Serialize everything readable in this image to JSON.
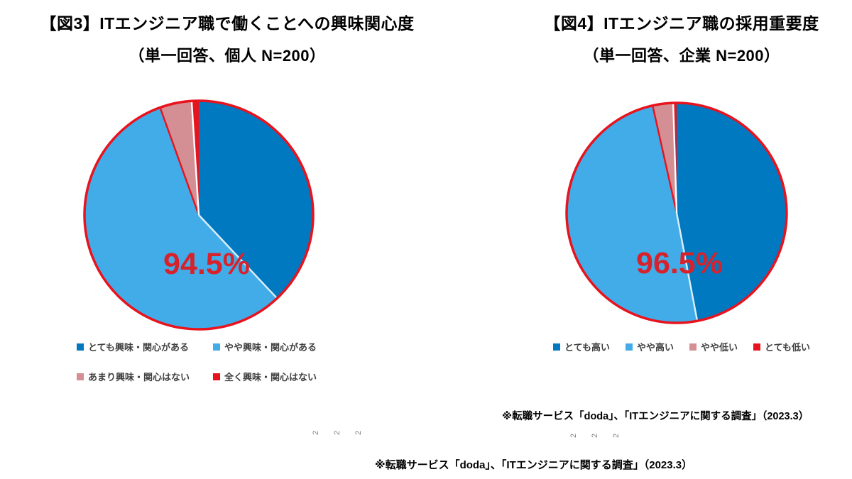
{
  "page": {
    "background": "#ffffff"
  },
  "chart_data": [
    {
      "type": "pie",
      "title_line1": "【図3】ITエンジニア職で働くことへの興味関心度",
      "title_line2": "（単一回答、個人 N=200）",
      "categories": [
        "とても興味・関心がある",
        "やや興味・関心がある",
        "あまり興味・関心はない",
        "全く興味・関心はない"
      ],
      "values": [
        38.0,
        56.5,
        4.5,
        1.0
      ],
      "colors": [
        "#0079c1",
        "#41ace8",
        "#d38f93",
        "#e8131d"
      ],
      "separator_colors": [
        "#ddeefa",
        "#e8131d",
        "#ffffff",
        "none"
      ],
      "outline_color": "#e8131d",
      "center_label": "94.5%",
      "center_label_color": "#d8222b",
      "start_angle_deg": 0,
      "direction": "clockwise",
      "legend_position": "bottom"
    },
    {
      "type": "pie",
      "title_line1": "【図4】ITエンジニア職の採用重要度",
      "title_line2": "（単一回答、企業 N=200）",
      "categories": [
        "とても高い",
        "やや高い",
        "やや低い",
        "とても低い"
      ],
      "values": [
        47.0,
        49.5,
        3.0,
        0.5
      ],
      "colors": [
        "#0079c1",
        "#41ace8",
        "#d38f93",
        "#e8131d"
      ],
      "separator_colors": [
        "#ddeefa",
        "#e8131d",
        "#ffffff",
        "none"
      ],
      "outline_color": "#e8131d",
      "center_label": "96.5%",
      "center_label_color": "#d8222b",
      "start_angle_deg": 0,
      "direction": "clockwise",
      "legend_position": "bottom"
    }
  ],
  "sources": {
    "fig4_note": "※転職サービス「doda」、「ITエンジニアに関する調査」（2023.3）",
    "bottom_note": "※転職サービス「doda」、「ITエンジニアに関する調査」（2023.3）"
  },
  "artifacts": {
    "rotated_marks_left": [
      "2",
      "2",
      "2"
    ],
    "rotated_marks_right": [
      "2",
      "2",
      "2"
    ]
  }
}
